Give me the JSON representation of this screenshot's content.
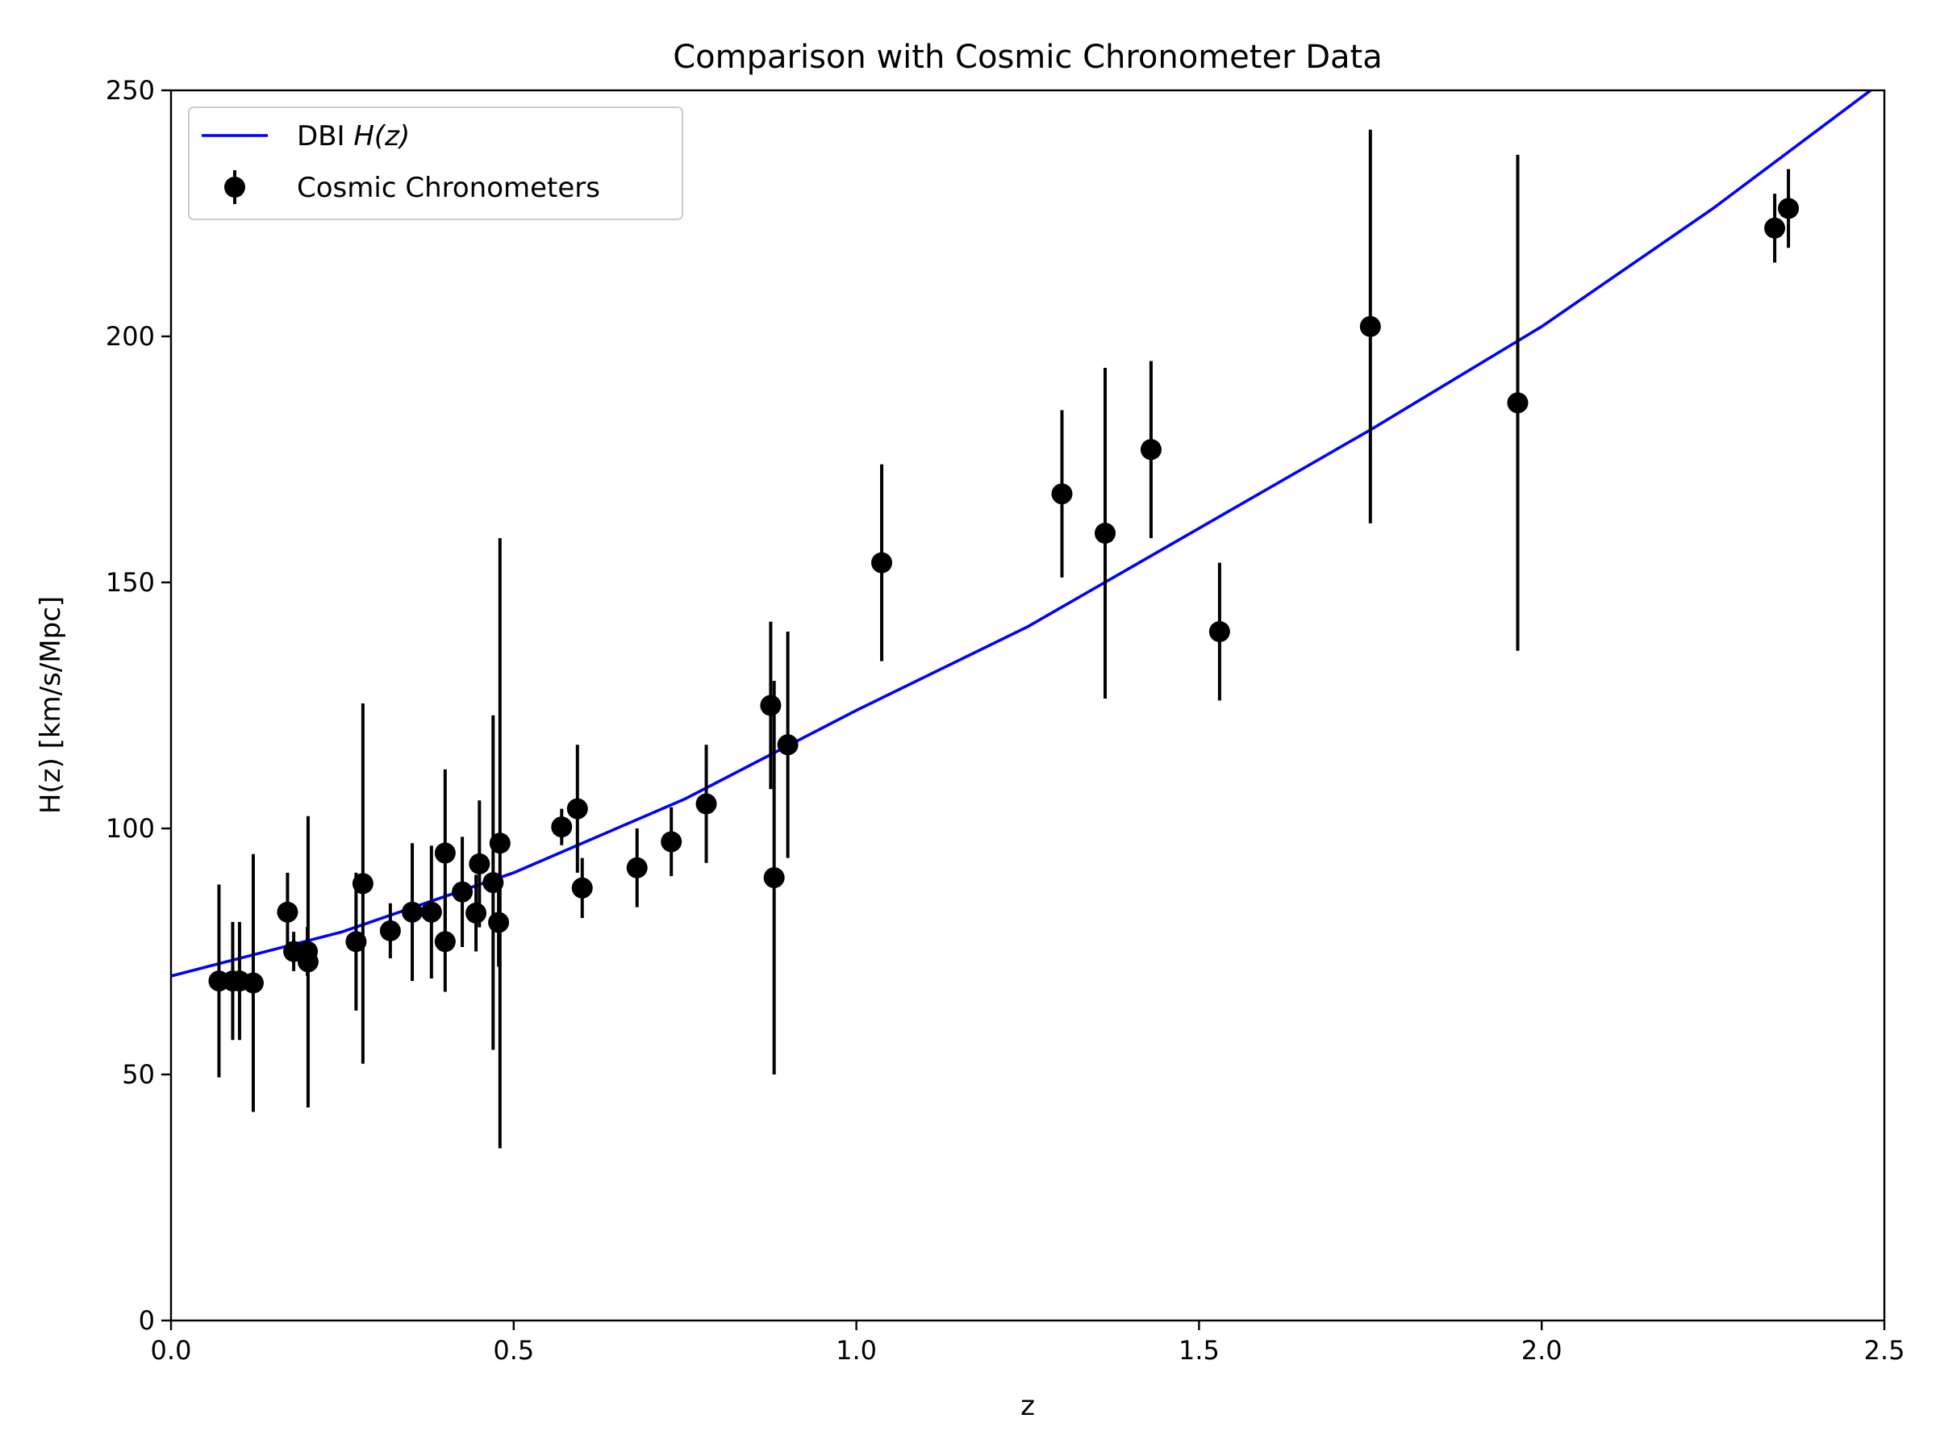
{
  "chart_data": {
    "type": "scatter",
    "title": "Comparison with Cosmic Chronometer Data",
    "xlabel": "z",
    "ylabel": "H(z) [km/s/Mpc]",
    "xlim": [
      0.0,
      2.5
    ],
    "ylim": [
      0,
      250
    ],
    "x_ticks": [
      "0.0",
      "0.5",
      "1.0",
      "1.5",
      "2.0",
      "2.5"
    ],
    "y_ticks": [
      "0",
      "50",
      "100",
      "150",
      "200",
      "250"
    ],
    "grid": false,
    "legend_position": "top-left",
    "legend": {
      "model_label": "DBI ",
      "model_label_math": "H(z)",
      "data_label": "Cosmic Chronometers"
    },
    "colors": {
      "model": "#0000ff",
      "data": "#000000"
    },
    "series": [
      {
        "name": "DBI H(z)",
        "kind": "line",
        "x": [
          0.0,
          0.25,
          0.5,
          0.75,
          1.0,
          1.25,
          1.5,
          1.75,
          2.0,
          2.25,
          2.48
        ],
        "y": [
          70,
          79,
          91,
          106,
          124,
          141,
          161,
          181,
          202,
          226,
          250
        ]
      },
      {
        "name": "Cosmic Chronometers",
        "kind": "errorbar",
        "points": [
          {
            "x": 0.07,
            "y": 69,
            "err": 19.6
          },
          {
            "x": 0.09,
            "y": 69,
            "err": 12
          },
          {
            "x": 0.1,
            "y": 69,
            "err": 12
          },
          {
            "x": 0.12,
            "y": 68.6,
            "err": 26.2
          },
          {
            "x": 0.17,
            "y": 83,
            "err": 8
          },
          {
            "x": 0.179,
            "y": 75,
            "err": 4
          },
          {
            "x": 0.199,
            "y": 75,
            "err": 5
          },
          {
            "x": 0.2,
            "y": 72.9,
            "err": 29.6
          },
          {
            "x": 0.27,
            "y": 77,
            "err": 14
          },
          {
            "x": 0.28,
            "y": 88.8,
            "err": 36.6
          },
          {
            "x": 0.32,
            "y": 79.2,
            "err": 5.6
          },
          {
            "x": 0.352,
            "y": 83,
            "err": 14
          },
          {
            "x": 0.38,
            "y": 83,
            "err": 13.5
          },
          {
            "x": 0.4,
            "y": 95,
            "err": 17
          },
          {
            "x": 0.4,
            "y": 77,
            "err": 10.2
          },
          {
            "x": 0.425,
            "y": 87.1,
            "err": 11.2
          },
          {
            "x": 0.445,
            "y": 82.8,
            "err": 7.8
          },
          {
            "x": 0.45,
            "y": 92.8,
            "err": 12.9
          },
          {
            "x": 0.47,
            "y": 89,
            "err": 34
          },
          {
            "x": 0.478,
            "y": 80.9,
            "err": 9
          },
          {
            "x": 0.48,
            "y": 97,
            "err": 62
          },
          {
            "x": 0.57,
            "y": 100.3,
            "err": 3.7
          },
          {
            "x": 0.593,
            "y": 104,
            "err": 13
          },
          {
            "x": 0.6,
            "y": 87.9,
            "err": 6.1
          },
          {
            "x": 0.68,
            "y": 92,
            "err": 8
          },
          {
            "x": 0.73,
            "y": 97.3,
            "err": 7
          },
          {
            "x": 0.781,
            "y": 105,
            "err": 12
          },
          {
            "x": 0.875,
            "y": 125,
            "err": 17
          },
          {
            "x": 0.88,
            "y": 90,
            "err": 40
          },
          {
            "x": 0.9,
            "y": 117,
            "err": 23
          },
          {
            "x": 1.037,
            "y": 154,
            "err": 20
          },
          {
            "x": 1.3,
            "y": 168,
            "err": 17
          },
          {
            "x": 1.363,
            "y": 160,
            "err": 33.6
          },
          {
            "x": 1.43,
            "y": 177,
            "err": 18
          },
          {
            "x": 1.53,
            "y": 140,
            "err": 14
          },
          {
            "x": 1.75,
            "y": 202,
            "err": 40
          },
          {
            "x": 1.965,
            "y": 186.5,
            "err": 50.4
          },
          {
            "x": 2.34,
            "y": 222,
            "err": 7
          },
          {
            "x": 2.36,
            "y": 226,
            "err": 8
          }
        ]
      }
    ]
  }
}
